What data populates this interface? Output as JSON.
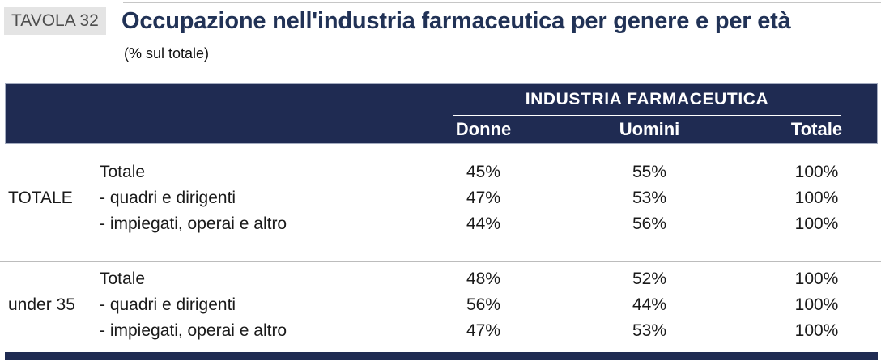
{
  "header": {
    "tag": "TAVOLA 32",
    "title": "Occupazione nell'industria farmaceutica per genere e per età",
    "subtitle": "(% sul totale)"
  },
  "table": {
    "span_header": "INDUSTRIA FARMACEUTICA",
    "columns": [
      "Donne",
      "Uomini",
      "Totale"
    ],
    "groups": [
      {
        "label": "TOTALE",
        "rows": [
          {
            "label": "Totale",
            "donne": "45%",
            "uomini": "55%",
            "totale": "100%"
          },
          {
            "label": "- quadri e dirigenti",
            "donne": "47%",
            "uomini": "53%",
            "totale": "100%"
          },
          {
            "label": "- impiegati, operai e altro",
            "donne": "44%",
            "uomini": "56%",
            "totale": "100%"
          }
        ]
      },
      {
        "label": "under 35",
        "rows": [
          {
            "label": "Totale",
            "donne": "48%",
            "uomini": "52%",
            "totale": "100%"
          },
          {
            "label": "- quadri e dirigenti",
            "donne": "56%",
            "uomini": "44%",
            "totale": "100%"
          },
          {
            "label": "- impiegati, operai e altro",
            "donne": "47%",
            "uomini": "53%",
            "totale": "100%"
          }
        ]
      }
    ]
  },
  "colors": {
    "navy_band": "#1f2b52",
    "title_text": "#213256",
    "badge_background": "#e4e4e4",
    "badge_text": "#4d4d4d"
  }
}
